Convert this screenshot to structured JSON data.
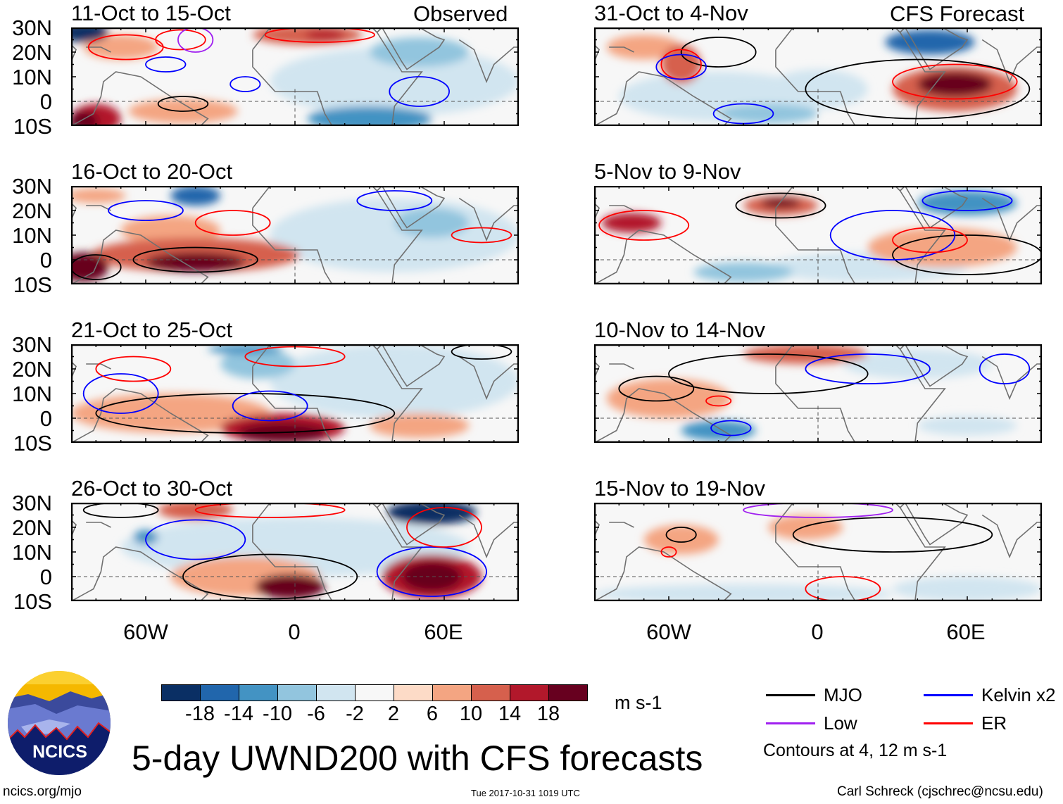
{
  "title": "5-day UWND200 with CFS forecasts",
  "logo_text": "NCICS",
  "footer": {
    "left": "ncics.org/mjo",
    "center": "Tue 2017-10-31 1019 UTC",
    "right": "Carl Schreck (cjschrec@ncsu.edu)"
  },
  "column_labels": {
    "left": "Observed",
    "right": "CFS Forecast"
  },
  "lat_labels": [
    "30N",
    "20N",
    "10N",
    "0",
    "10S"
  ],
  "lon_labels": [
    "60W",
    "0",
    "60E"
  ],
  "colorbar": {
    "unit": "m s-1",
    "ticks": [
      "-18",
      "-14",
      "-10",
      "-6",
      "-2",
      "2",
      "6",
      "10",
      "14",
      "18"
    ],
    "colors": [
      "#0a2f64",
      "#2166ac",
      "#4393c3",
      "#92c5de",
      "#d1e5f0",
      "#f7f7f7",
      "#fddbc7",
      "#f4a582",
      "#d6604d",
      "#b2182b",
      "#67001f"
    ]
  },
  "legend": {
    "items": [
      {
        "label": "MJO",
        "color": "#000000"
      },
      {
        "label": "Kelvin x2",
        "color": "#0000ff"
      },
      {
        "label": "Low",
        "color": "#a020f0"
      },
      {
        "label": "ER",
        "color": "#ff0000"
      }
    ],
    "note": "Contours at 4, 12 m s-1"
  },
  "chart_data": {
    "type": "heatmap",
    "variable": "200-hPa zonal wind anomaly",
    "unit": "m s-1",
    "lon_range": [
      -90,
      90
    ],
    "lat_range": [
      -10,
      30
    ],
    "blob_format": "[lon, lat, lon_halfwidth_deg, lat_halfwidth_deg, value]",
    "contour_format": "[type, lon, lat, lon_halfwidth_deg, lat_halfwidth_deg]",
    "panels": [
      {
        "title": "11-Oct to 15-Oct",
        "blobs": [
          [
            40,
            8,
            50,
            14,
            -4
          ],
          [
            -70,
            22,
            15,
            5,
            7
          ],
          [
            -45,
            -4,
            22,
            5,
            7
          ],
          [
            5,
            27,
            22,
            4,
            10
          ],
          [
            12,
            27,
            8,
            2,
            16
          ],
          [
            50,
            20,
            20,
            6,
            -9
          ],
          [
            30,
            -7,
            25,
            5,
            -11
          ],
          [
            -80,
            -7,
            10,
            6,
            16
          ],
          [
            -85,
            -8,
            6,
            4,
            22
          ],
          [
            -85,
            28,
            10,
            4,
            -20
          ]
        ],
        "contours": [
          [
            "er",
            -68,
            22,
            15,
            5
          ],
          [
            "er",
            -46,
            25,
            10,
            4
          ],
          [
            "low",
            -40,
            25,
            7,
            5
          ],
          [
            "kelvin",
            -52,
            15,
            8,
            3
          ],
          [
            "mjo",
            -45,
            -1,
            10,
            3
          ],
          [
            "kelvin",
            50,
            4,
            12,
            6
          ],
          [
            "er",
            10,
            27,
            22,
            3
          ],
          [
            "kelvin",
            -20,
            7,
            6,
            3
          ]
        ]
      },
      {
        "title": "16-Oct to 20-Oct",
        "blobs": [
          [
            40,
            10,
            50,
            15,
            -5
          ],
          [
            55,
            15,
            15,
            6,
            -10
          ],
          [
            -50,
            12,
            20,
            6,
            8
          ],
          [
            -40,
            2,
            42,
            7,
            13
          ],
          [
            -40,
            -1,
            20,
            4,
            19
          ],
          [
            -85,
            -3,
            10,
            6,
            20
          ],
          [
            -40,
            26,
            10,
            4,
            -16
          ],
          [
            -80,
            26,
            12,
            3,
            8
          ]
        ],
        "contours": [
          [
            "mjo",
            -40,
            0,
            25,
            5
          ],
          [
            "mjo",
            -80,
            -3,
            10,
            5
          ],
          [
            "kelvin",
            40,
            24,
            15,
            4
          ],
          [
            "er",
            -25,
            15,
            15,
            5
          ],
          [
            "kelvin",
            -60,
            20,
            15,
            4
          ],
          [
            "er",
            75,
            10,
            12,
            3
          ]
        ]
      },
      {
        "title": "21-Oct to 25-Oct",
        "blobs": [
          [
            40,
            15,
            50,
            15,
            -4
          ],
          [
            -50,
            2,
            40,
            8,
            8
          ],
          [
            50,
            -3,
            20,
            5,
            7
          ],
          [
            -5,
            -4,
            25,
            6,
            14
          ],
          [
            -5,
            -6,
            18,
            4,
            22
          ],
          [
            -15,
            22,
            15,
            6,
            -9
          ],
          [
            -20,
            28,
            15,
            2,
            -14
          ]
        ],
        "contours": [
          [
            "mjo",
            -20,
            2,
            60,
            8
          ],
          [
            "kelvin",
            -70,
            10,
            15,
            8
          ],
          [
            "er",
            0,
            25,
            20,
            4
          ],
          [
            "kelvin",
            -10,
            5,
            15,
            6
          ],
          [
            "er",
            -65,
            20,
            15,
            5
          ],
          [
            "mjo",
            75,
            27,
            12,
            3
          ]
        ]
      },
      {
        "title": "26-Oct to 30-Oct",
        "blobs": [
          [
            0,
            12,
            70,
            12,
            -3
          ],
          [
            -20,
            0,
            30,
            8,
            8
          ],
          [
            -40,
            27,
            15,
            4,
            12
          ],
          [
            55,
            0,
            20,
            9,
            14
          ],
          [
            55,
            0,
            12,
            6,
            20
          ],
          [
            -2,
            -4,
            14,
            5,
            20
          ],
          [
            55,
            26,
            18,
            5,
            -20
          ],
          [
            -60,
            16,
            5,
            3,
            -12
          ]
        ],
        "contours": [
          [
            "kelvin",
            55,
            2,
            22,
            10
          ],
          [
            "mjo",
            -10,
            0,
            35,
            9
          ],
          [
            "er",
            -10,
            27,
            30,
            3
          ],
          [
            "kelvin",
            -40,
            15,
            20,
            8
          ],
          [
            "er",
            60,
            20,
            15,
            8
          ],
          [
            "mjo",
            -70,
            27,
            15,
            3
          ]
        ]
      },
      {
        "title": "31-Oct to 4-Nov",
        "blobs": [
          [
            -40,
            2,
            40,
            10,
            -6
          ],
          [
            -70,
            22,
            15,
            5,
            6
          ],
          [
            -55,
            15,
            8,
            8,
            10
          ],
          [
            -20,
            -5,
            20,
            4,
            -9
          ],
          [
            55,
            5,
            25,
            9,
            12
          ],
          [
            55,
            7,
            15,
            5,
            20
          ],
          [
            45,
            24,
            18,
            5,
            -18
          ],
          [
            0,
            5,
            20,
            8,
            -3
          ]
        ],
        "contours": [
          [
            "er",
            55,
            8,
            25,
            7
          ],
          [
            "mjo",
            40,
            5,
            45,
            12
          ],
          [
            "kelvin",
            -30,
            -5,
            12,
            4
          ],
          [
            "mjo",
            -40,
            20,
            15,
            6
          ],
          [
            "er",
            -55,
            15,
            8,
            6
          ],
          [
            "kelvin",
            -55,
            14,
            10,
            5
          ]
        ]
      },
      {
        "title": "5-Nov to 9-Nov",
        "blobs": [
          [
            20,
            -3,
            40,
            6,
            -4
          ],
          [
            50,
            5,
            30,
            8,
            8
          ],
          [
            -30,
            -5,
            20,
            4,
            -9
          ],
          [
            60,
            23,
            20,
            5,
            -12
          ],
          [
            -15,
            22,
            15,
            4,
            13
          ],
          [
            -15,
            23,
            8,
            2,
            19
          ],
          [
            -75,
            15,
            12,
            4,
            16
          ]
        ],
        "contours": [
          [
            "mjo",
            -15,
            22,
            18,
            5
          ],
          [
            "er",
            -70,
            14,
            18,
            6
          ],
          [
            "mjo",
            60,
            2,
            30,
            8
          ],
          [
            "kelvin",
            30,
            10,
            25,
            10
          ],
          [
            "kelvin",
            60,
            24,
            18,
            4
          ],
          [
            "er",
            45,
            8,
            15,
            5
          ]
        ]
      },
      {
        "title": "10-Nov to 14-Nov",
        "blobs": [
          [
            -60,
            8,
            25,
            8,
            7
          ],
          [
            40,
            22,
            30,
            6,
            -6
          ],
          [
            60,
            -3,
            20,
            4,
            -6
          ],
          [
            -5,
            26,
            25,
            4,
            12
          ],
          [
            -40,
            -5,
            15,
            4,
            -12
          ]
        ],
        "contours": [
          [
            "mjo",
            -20,
            18,
            40,
            8
          ],
          [
            "kelvin",
            20,
            20,
            25,
            6
          ],
          [
            "kelvin",
            75,
            20,
            10,
            6
          ],
          [
            "er",
            -40,
            7,
            5,
            2
          ],
          [
            "kelvin",
            -35,
            -4,
            8,
            3
          ],
          [
            "mjo",
            -65,
            12,
            15,
            5
          ]
        ]
      },
      {
        "title": "15-Nov to 19-Nov",
        "blobs": [
          [
            -30,
            -7,
            60,
            4,
            -4
          ],
          [
            60,
            -5,
            30,
            5,
            -3
          ],
          [
            -55,
            15,
            15,
            6,
            7
          ],
          [
            -5,
            20,
            15,
            5,
            6
          ]
        ],
        "contours": [
          [
            "mjo",
            30,
            17,
            40,
            7
          ],
          [
            "er",
            10,
            -5,
            15,
            5
          ],
          [
            "mjo",
            -55,
            17,
            6,
            3
          ],
          [
            "low",
            0,
            27,
            30,
            3
          ],
          [
            "er",
            -60,
            10,
            3,
            2
          ]
        ]
      }
    ]
  }
}
